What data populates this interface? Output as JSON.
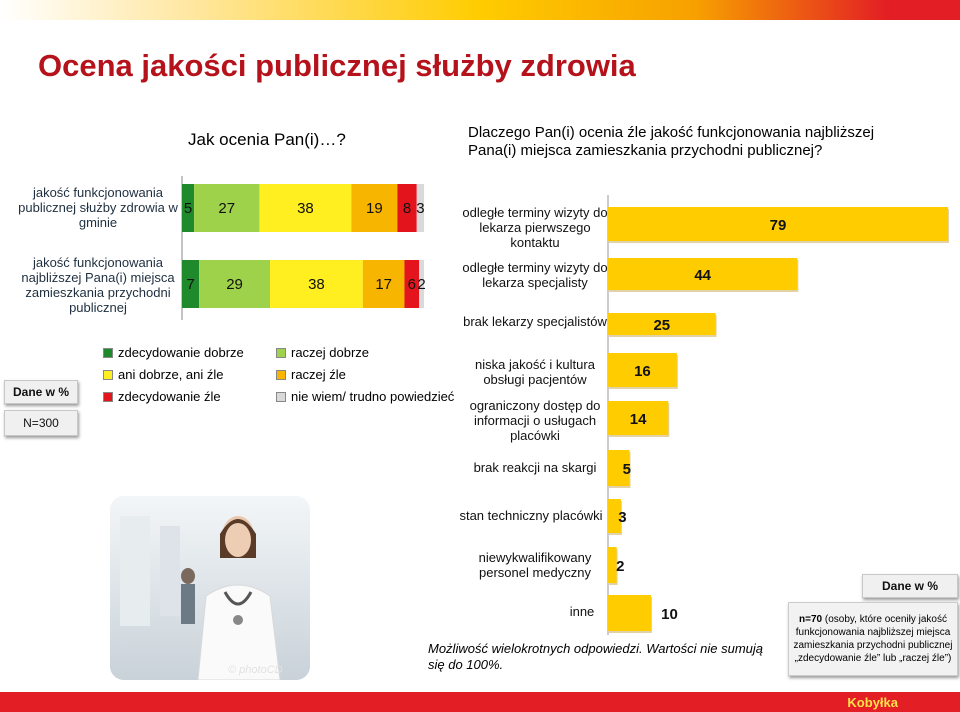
{
  "title": "Ocena jakości publicznej służby zdrowia",
  "colors": {
    "dark_green": "#1f8a2c",
    "light_green": "#9ed24a",
    "yellow": "#ffee20",
    "orange": "#f7b500",
    "red": "#e3141c",
    "grey": "#d9d9d9",
    "gold": "#ffcc00",
    "brand_red": "#e31e24",
    "title_red": "#b5121b"
  },
  "left_chart_header": "Jak ocenia Pan(i)…?",
  "right_chart_header": "Dlaczego Pan(i) ocenia źle jakość funkcjonowania najbliższej Pana(i) miejsca zamieszkania przychodni publicznej?",
  "legend": [
    {
      "label": "zdecydowanie dobrze",
      "color": "#1f8a2c"
    },
    {
      "label": "raczej dobrze",
      "color": "#9ed24a"
    },
    {
      "label": "ani dobrze, ani źle",
      "color": "#ffee20"
    },
    {
      "label": "raczej źle",
      "color": "#f7b500"
    },
    {
      "label": "zdecydowanie źle",
      "color": "#e3141c"
    },
    {
      "label": "nie wiem/ trudno powiedzieć",
      "color": "#d9d9d9"
    }
  ],
  "dane_label": "Dane w %",
  "dane_label_right": "Dane w %",
  "n_label": "N=300",
  "footnote": "Możliwość wielokrotnych odpowiedzi. Wartości nie sumują się do 100%.",
  "n70_bold": "n=70",
  "n70_text": " (osoby, które oceniły jakość funkcjonowania najbliższej miejsca zamieszkania przychodni publicznej „zdecydowanie źle” lub „raczej źle”)",
  "photo_credit": "© photoCD",
  "brand": "Kobyłka",
  "chart_data": [
    {
      "type": "bar",
      "orientation": "horizontal-stacked",
      "categories": [
        "jakość funkcjonowania publicznej służby zdrowia w gminie",
        "jakość funkcjonowania najbliższej Pana(i) miejsca zamieszkania przychodni publicznej"
      ],
      "series": [
        {
          "name": "zdecydowanie dobrze",
          "values": [
            5,
            7
          ]
        },
        {
          "name": "raczej dobrze",
          "values": [
            27,
            29
          ]
        },
        {
          "name": "ani dobrze, ani źle",
          "values": [
            38,
            38
          ]
        },
        {
          "name": "raczej źle",
          "values": [
            19,
            17
          ]
        },
        {
          "name": "zdecydowanie źle",
          "values": [
            8,
            6
          ]
        },
        {
          "name": "nie wiem/ trudno powiedzieć",
          "values": [
            3,
            2
          ]
        }
      ]
    },
    {
      "type": "bar",
      "orientation": "horizontal",
      "categories": [
        "odległe terminy wizyty do lekarza pierwszego kontaktu",
        "odległe terminy wizyty do lekarza specjalisty",
        "brak lekarzy specjalistów",
        "niska jakość i kultura obsługi pacjentów",
        "ograniczony dostęp do informacji o usługach placówki",
        "brak reakcji na skargi",
        "stan techniczny placówki",
        "niewykwalifikowany personel medyczny",
        "inne"
      ],
      "values": [
        79,
        44,
        25,
        16,
        14,
        5,
        3,
        2,
        10
      ]
    }
  ]
}
